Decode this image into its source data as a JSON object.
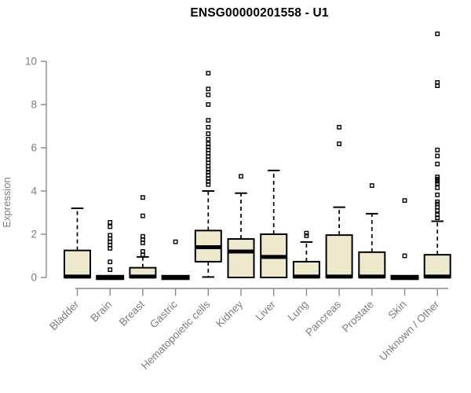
{
  "chart_data": {
    "type": "boxplot",
    "title": "ENSG00000201558 - U1",
    "ylabel": "Expression",
    "xlabel": "",
    "yticks": [
      0,
      2,
      4,
      6,
      8,
      10
    ],
    "ylim": [
      0,
      11.5
    ],
    "grid": false,
    "legend": "none",
    "categories": [
      "Bladder",
      "Brain",
      "Breast",
      "Gastric",
      "Hematopoietic cells",
      "Kidney",
      "Liver",
      "Lung",
      "Pancreas",
      "Prostate",
      "Skin",
      "Unknown / Other"
    ],
    "series": [
      {
        "name": "Bladder",
        "whislo": 0,
        "q1": 0,
        "med": 0.04,
        "q3": 1.25,
        "whishi": 3.2,
        "outliers": []
      },
      {
        "name": "Brain",
        "whislo": 0,
        "q1": 0,
        "med": 0,
        "q3": 0,
        "whishi": 0,
        "outliers": [
          2.55,
          2.35,
          1.95,
          1.8,
          1.65,
          1.5,
          1.35,
          0.72,
          0.36
        ]
      },
      {
        "name": "Breast",
        "whislo": 0,
        "q1": 0,
        "med": 0.04,
        "q3": 0.45,
        "whishi": 0.95,
        "outliers": [
          3.7,
          2.85,
          1.9,
          1.75,
          1.6,
          1.2,
          1.05
        ]
      },
      {
        "name": "Gastric",
        "whislo": 0,
        "q1": 0,
        "med": 0,
        "q3": 0,
        "whishi": 0,
        "outliers": [
          1.65
        ]
      },
      {
        "name": "Hematopoietic cells",
        "whislo": 0.02,
        "q1": 0.73,
        "med": 1.4,
        "q3": 2.17,
        "whishi": 4.0,
        "outliers": [
          9.45,
          8.72,
          8.45,
          8.0,
          7.27,
          6.95,
          6.65,
          6.4,
          6.18,
          6.04,
          5.9,
          5.75,
          5.6,
          5.45,
          5.3,
          5.15,
          5.0,
          4.87,
          4.73,
          4.58,
          4.44,
          4.3
        ]
      },
      {
        "name": "Kidney",
        "whislo": 0,
        "q1": 0,
        "med": 1.2,
        "q3": 1.78,
        "whishi": 3.9,
        "outliers": [
          4.68
        ]
      },
      {
        "name": "Liver",
        "whislo": 0,
        "q1": 0,
        "med": 0.95,
        "q3": 2.0,
        "whishi": 4.95,
        "outliers": []
      },
      {
        "name": "Lung",
        "whislo": 0,
        "q1": 0,
        "med": 0.04,
        "q3": 0.73,
        "whishi": 1.64,
        "outliers": [
          2.05,
          1.93
        ]
      },
      {
        "name": "Pancreas",
        "whislo": 0,
        "q1": 0,
        "med": 0.04,
        "q3": 1.96,
        "whishi": 3.25,
        "outliers": [
          6.95,
          6.18
        ]
      },
      {
        "name": "Prostate",
        "whislo": 0,
        "q1": 0,
        "med": 0.04,
        "q3": 1.17,
        "whishi": 2.95,
        "outliers": [
          4.25
        ]
      },
      {
        "name": "Skin",
        "whislo": 0,
        "q1": 0,
        "med": 0,
        "q3": 0,
        "whishi": 0,
        "outliers": [
          3.56,
          1.0
        ]
      },
      {
        "name": "Unknown / Other",
        "whislo": 0,
        "q1": 0,
        "med": 0.04,
        "q3": 1.05,
        "whishi": 2.6,
        "outliers": [
          11.27,
          9.02,
          8.87,
          5.9,
          5.62,
          5.25,
          4.65,
          4.55,
          4.45,
          4.35,
          4.15,
          3.82,
          3.5,
          3.4,
          3.25,
          3.1,
          2.9,
          2.76
        ]
      }
    ],
    "colors": {
      "box_fill": "#EEE8CD",
      "box_stroke": "#000000",
      "median": "#000000",
      "whisker": "#000000",
      "axis": "#898989",
      "tick_label": "#7d7d7d",
      "title": "#000000",
      "background": "#ffffff"
    }
  }
}
